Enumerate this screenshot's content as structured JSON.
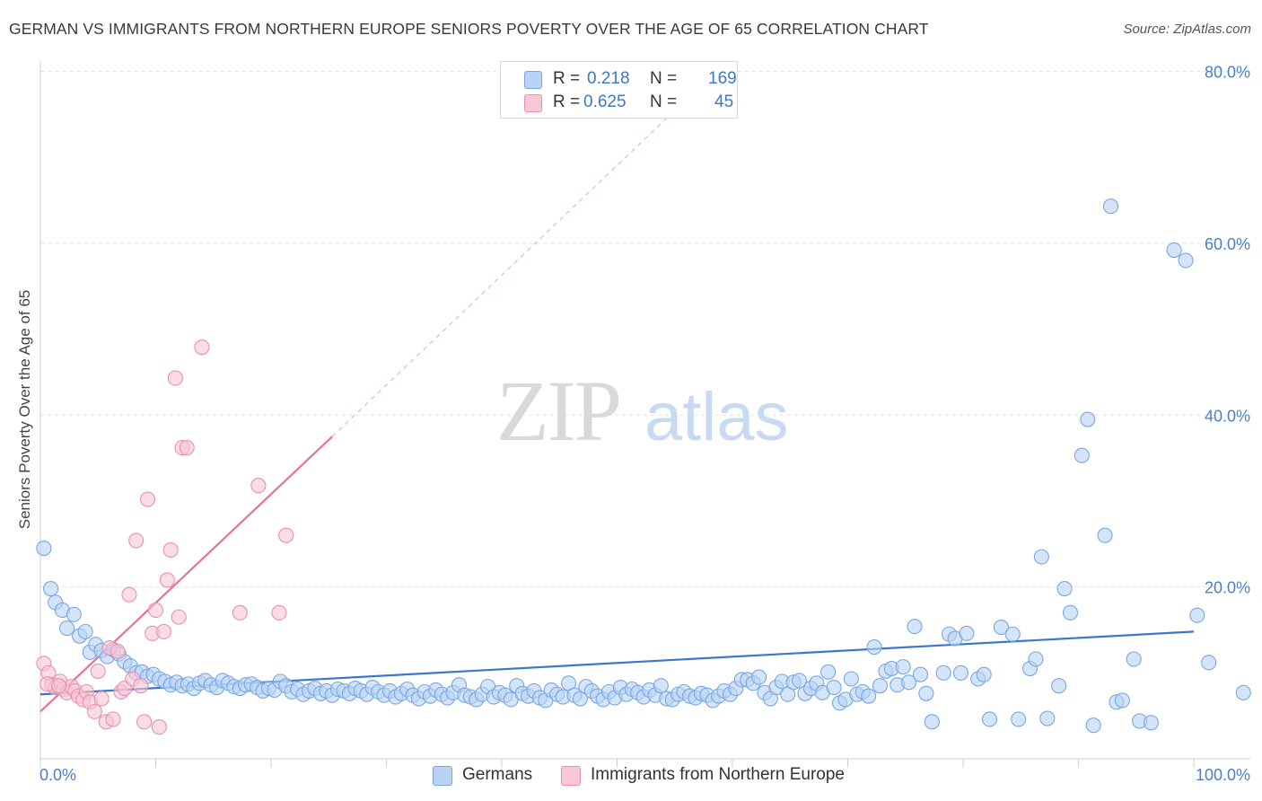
{
  "title": "GERMAN VS IMMIGRANTS FROM NORTHERN EUROPE SENIORS POVERTY OVER THE AGE OF 65 CORRELATION CHART",
  "source": "Source: ZipAtlas.com",
  "watermark": {
    "zip": "ZIP",
    "atlas": "atlas"
  },
  "legend_top": [
    {
      "r_label": "R =",
      "r_value": "0.218",
      "n_label": "N =",
      "n_value": "169",
      "color": "#b8d3f5",
      "border": "#7aa6e0"
    },
    {
      "r_label": "R =",
      "r_value": "0.625",
      "n_label": "N =",
      "n_value": "45",
      "color": "#f8c7d6",
      "border": "#ec8fab"
    }
  ],
  "legend_bottom": [
    {
      "label": "Germans",
      "color": "#b8d3f5",
      "border": "#7aa6e0"
    },
    {
      "label": "Immigrants from Northern Europe",
      "color": "#f8c7d6",
      "border": "#ec8fab"
    }
  ],
  "chart_data": {
    "type": "scatter",
    "title": "GERMAN VS IMMIGRANTS FROM NORTHERN EUROPE SENIORS POVERTY OVER THE AGE OF 65 CORRELATION CHART",
    "xlabel": "",
    "ylabel": "Seniors Poverty Over the Age of 65",
    "xlim": [
      0,
      100
    ],
    "ylim": [
      0,
      82
    ],
    "x_tick_labels": [
      "0.0%",
      "100.0%"
    ],
    "y_ticks": [
      20,
      40,
      60,
      80
    ],
    "y_tick_labels": [
      "20.0%",
      "40.0%",
      "60.0%",
      "80.0%"
    ],
    "grid": true,
    "legend": "top-center",
    "series": [
      {
        "name": "Germans",
        "color": "#7aa6e0",
        "fill": "#b8d3f5",
        "trend": {
          "x": [
            0,
            100
          ],
          "y": [
            7.5,
            14.8
          ],
          "color": "#3a78d0"
        },
        "points": [
          [
            0.3,
            24.5
          ],
          [
            0.9,
            19.8
          ],
          [
            1.3,
            18.2
          ],
          [
            1.9,
            17.3
          ],
          [
            2.3,
            15.2
          ],
          [
            2.9,
            16.8
          ],
          [
            3.4,
            14.3
          ],
          [
            3.9,
            14.8
          ],
          [
            4.3,
            12.4
          ],
          [
            4.8,
            13.3
          ],
          [
            5.3,
            12.6
          ],
          [
            5.8,
            11.9
          ],
          [
            6.3,
            12.7
          ],
          [
            6.8,
            12.2
          ],
          [
            7.3,
            11.3
          ],
          [
            7.8,
            10.8
          ],
          [
            8.3,
            10.0
          ],
          [
            8.8,
            10.1
          ],
          [
            9.3,
            9.6
          ],
          [
            9.8,
            9.8
          ],
          [
            10.3,
            9.3
          ],
          [
            10.8,
            9.0
          ],
          [
            11.3,
            8.6
          ],
          [
            11.8,
            8.9
          ],
          [
            12.3,
            8.5
          ],
          [
            12.8,
            8.7
          ],
          [
            13.3,
            8.2
          ],
          [
            13.8,
            8.8
          ],
          [
            14.3,
            9.1
          ],
          [
            14.8,
            8.6
          ],
          [
            15.3,
            8.3
          ],
          [
            15.8,
            9.1
          ],
          [
            16.3,
            8.8
          ],
          [
            16.8,
            8.4
          ],
          [
            17.3,
            8.2
          ],
          [
            17.8,
            8.6
          ],
          [
            18.3,
            8.7
          ],
          [
            18.8,
            8.3
          ],
          [
            19.3,
            7.9
          ],
          [
            19.8,
            8.2
          ],
          [
            20.3,
            8.0
          ],
          [
            20.8,
            9.0
          ],
          [
            21.3,
            8.5
          ],
          [
            21.8,
            7.8
          ],
          [
            22.3,
            8.1
          ],
          [
            22.8,
            7.5
          ],
          [
            23.3,
            7.9
          ],
          [
            23.8,
            8.2
          ],
          [
            24.3,
            7.6
          ],
          [
            24.8,
            7.9
          ],
          [
            25.3,
            7.4
          ],
          [
            25.8,
            8.1
          ],
          [
            26.3,
            7.9
          ],
          [
            26.8,
            7.6
          ],
          [
            27.3,
            8.2
          ],
          [
            27.8,
            7.9
          ],
          [
            28.3,
            7.5
          ],
          [
            28.8,
            8.3
          ],
          [
            29.3,
            7.8
          ],
          [
            29.8,
            7.4
          ],
          [
            30.3,
            7.9
          ],
          [
            30.8,
            7.2
          ],
          [
            31.3,
            7.6
          ],
          [
            31.8,
            8.1
          ],
          [
            32.3,
            7.4
          ],
          [
            32.8,
            7.0
          ],
          [
            33.3,
            7.8
          ],
          [
            33.8,
            7.3
          ],
          [
            34.3,
            8.0
          ],
          [
            34.8,
            7.5
          ],
          [
            35.3,
            7.1
          ],
          [
            35.8,
            7.7
          ],
          [
            36.3,
            8.6
          ],
          [
            36.8,
            7.4
          ],
          [
            37.3,
            7.2
          ],
          [
            37.8,
            6.9
          ],
          [
            38.3,
            7.5
          ],
          [
            38.8,
            8.4
          ],
          [
            39.3,
            7.2
          ],
          [
            39.8,
            7.7
          ],
          [
            40.3,
            7.4
          ],
          [
            40.8,
            6.9
          ],
          [
            41.3,
            8.5
          ],
          [
            41.8,
            7.6
          ],
          [
            42.3,
            7.3
          ],
          [
            42.8,
            7.9
          ],
          [
            43.3,
            7.1
          ],
          [
            43.8,
            6.8
          ],
          [
            44.3,
            8.0
          ],
          [
            44.8,
            7.5
          ],
          [
            45.3,
            7.2
          ],
          [
            45.8,
            8.8
          ],
          [
            46.3,
            7.4
          ],
          [
            46.8,
            7.0
          ],
          [
            47.3,
            8.4
          ],
          [
            47.8,
            7.9
          ],
          [
            48.3,
            7.3
          ],
          [
            48.8,
            6.9
          ],
          [
            49.3,
            7.8
          ],
          [
            49.8,
            7.1
          ],
          [
            50.3,
            8.3
          ],
          [
            50.8,
            7.5
          ],
          [
            51.3,
            8.1
          ],
          [
            51.8,
            7.7
          ],
          [
            52.3,
            7.2
          ],
          [
            52.8,
            8.0
          ],
          [
            53.3,
            7.4
          ],
          [
            53.8,
            8.5
          ],
          [
            54.3,
            7.0
          ],
          [
            54.8,
            6.9
          ],
          [
            55.3,
            7.5
          ],
          [
            55.8,
            7.8
          ],
          [
            56.3,
            7.3
          ],
          [
            56.8,
            7.1
          ],
          [
            57.3,
            7.6
          ],
          [
            57.8,
            7.4
          ],
          [
            58.3,
            6.8
          ],
          [
            58.8,
            7.3
          ],
          [
            59.3,
            7.9
          ],
          [
            59.8,
            7.5
          ],
          [
            60.3,
            8.2
          ],
          [
            60.8,
            9.2
          ],
          [
            61.3,
            9.2
          ],
          [
            61.8,
            8.8
          ],
          [
            62.3,
            9.5
          ],
          [
            62.8,
            7.7
          ],
          [
            63.3,
            7.0
          ],
          [
            63.8,
            8.3
          ],
          [
            64.3,
            9.0
          ],
          [
            64.8,
            7.5
          ],
          [
            65.3,
            8.9
          ],
          [
            65.8,
            9.1
          ],
          [
            66.3,
            7.6
          ],
          [
            66.8,
            8.2
          ],
          [
            67.3,
            8.8
          ],
          [
            67.8,
            7.7
          ],
          [
            68.3,
            10.1
          ],
          [
            68.8,
            8.3
          ],
          [
            69.3,
            6.5
          ],
          [
            69.8,
            6.9
          ],
          [
            70.3,
            9.3
          ],
          [
            70.8,
            7.5
          ],
          [
            71.3,
            7.8
          ],
          [
            71.8,
            7.3
          ],
          [
            72.3,
            13.0
          ],
          [
            72.8,
            8.5
          ],
          [
            73.3,
            10.2
          ],
          [
            73.8,
            10.5
          ],
          [
            74.3,
            8.6
          ],
          [
            74.8,
            10.7
          ],
          [
            75.3,
            8.9
          ],
          [
            75.8,
            15.4
          ],
          [
            76.3,
            9.8
          ],
          [
            76.8,
            7.6
          ],
          [
            77.3,
            4.3
          ],
          [
            78.3,
            10.0
          ],
          [
            78.8,
            14.5
          ],
          [
            79.3,
            14.0
          ],
          [
            79.8,
            10.0
          ],
          [
            80.3,
            14.6
          ],
          [
            81.3,
            9.3
          ],
          [
            81.8,
            9.8
          ],
          [
            82.3,
            4.6
          ],
          [
            83.3,
            15.3
          ],
          [
            84.3,
            14.5
          ],
          [
            84.8,
            4.6
          ],
          [
            85.8,
            10.5
          ],
          [
            86.3,
            11.6
          ],
          [
            86.8,
            23.5
          ],
          [
            87.3,
            4.7
          ],
          [
            88.3,
            8.5
          ],
          [
            88.8,
            19.8
          ],
          [
            89.3,
            17.0
          ],
          [
            90.3,
            35.3
          ],
          [
            90.8,
            39.5
          ],
          [
            91.3,
            3.9
          ],
          [
            92.3,
            26.0
          ],
          [
            92.8,
            64.3
          ],
          [
            93.3,
            6.6
          ],
          [
            93.8,
            6.8
          ],
          [
            94.8,
            11.6
          ],
          [
            95.3,
            4.4
          ],
          [
            96.3,
            4.2
          ],
          [
            98.3,
            59.2
          ],
          [
            99.3,
            58.0
          ],
          [
            100.3,
            16.7
          ],
          [
            101.3,
            11.2
          ],
          [
            104.3,
            7.7
          ]
        ]
      },
      {
        "name": "Immigrants from Northern Europe",
        "color": "#ec8fab",
        "fill": "#f8c7d6",
        "trend": {
          "x": [
            0,
            25.3
          ],
          "y": [
            5.5,
            37.5
          ],
          "color": "#e8709a"
        },
        "trend_extension": {
          "x": [
            25.3,
            57
          ],
          "y": [
            37.5,
            78
          ]
        },
        "points": [
          [
            0.3,
            11.1
          ],
          [
            0.7,
            10.0
          ],
          [
            1.0,
            8.6
          ],
          [
            1.3,
            8.3
          ],
          [
            1.7,
            9.0
          ],
          [
            2.0,
            8.1
          ],
          [
            2.3,
            7.7
          ],
          [
            2.7,
            8.4
          ],
          [
            3.0,
            7.9
          ],
          [
            3.3,
            7.3
          ],
          [
            3.7,
            6.9
          ],
          [
            4.0,
            7.8
          ],
          [
            4.3,
            6.6
          ],
          [
            4.7,
            5.5
          ],
          [
            5.0,
            10.2
          ],
          [
            5.3,
            7.0
          ],
          [
            5.7,
            4.3
          ],
          [
            6.0,
            12.9
          ],
          [
            6.3,
            4.6
          ],
          [
            6.7,
            12.5
          ],
          [
            7.0,
            7.8
          ],
          [
            7.3,
            8.2
          ],
          [
            7.7,
            19.1
          ],
          [
            8.0,
            9.3
          ],
          [
            8.3,
            25.4
          ],
          [
            8.7,
            8.5
          ],
          [
            9.0,
            4.3
          ],
          [
            9.3,
            30.2
          ],
          [
            9.7,
            14.6
          ],
          [
            10.0,
            17.3
          ],
          [
            10.3,
            3.7
          ],
          [
            10.7,
            14.8
          ],
          [
            11.0,
            20.8
          ],
          [
            11.3,
            24.3
          ],
          [
            11.7,
            44.3
          ],
          [
            12.0,
            16.5
          ],
          [
            12.3,
            36.2
          ],
          [
            12.7,
            36.2
          ],
          [
            14.0,
            47.9
          ],
          [
            17.3,
            17.0
          ],
          [
            18.9,
            31.8
          ],
          [
            20.7,
            17.0
          ],
          [
            21.3,
            26.0
          ],
          [
            0.6,
            8.7
          ],
          [
            1.6,
            8.5
          ]
        ]
      }
    ]
  }
}
